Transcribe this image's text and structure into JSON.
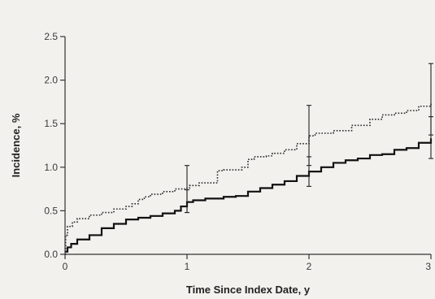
{
  "chart_data": {
    "type": "line",
    "title": "",
    "xlabel": "Time Since Index Date, y",
    "ylabel": "Incidence, %",
    "xlim": [
      0,
      3
    ],
    "ylim": [
      0,
      2.5
    ],
    "x_ticks": [
      0,
      1,
      2,
      3
    ],
    "x_tick_labels": [
      "0",
      "1",
      "2",
      "3"
    ],
    "y_ticks": [
      0,
      0.5,
      1.0,
      1.5,
      2.0,
      2.5
    ],
    "y_tick_labels": [
      "0.0",
      "0.5",
      "1.0",
      "1.5",
      "2.0",
      "2.5"
    ],
    "grid": false,
    "legend": "none",
    "series": [
      {
        "style": "dotted",
        "color": "#2a2a2a",
        "points": [
          [
            0,
            0
          ],
          [
            0.005,
            0.22
          ],
          [
            0.02,
            0.32
          ],
          [
            0.06,
            0.37
          ],
          [
            0.1,
            0.41
          ],
          [
            0.2,
            0.45
          ],
          [
            0.3,
            0.48
          ],
          [
            0.4,
            0.52
          ],
          [
            0.5,
            0.55
          ],
          [
            0.55,
            0.58
          ],
          [
            0.6,
            0.63
          ],
          [
            0.65,
            0.66
          ],
          [
            0.7,
            0.69
          ],
          [
            0.8,
            0.72
          ],
          [
            0.9,
            0.75
          ],
          [
            1.0,
            0.76
          ],
          [
            1.02,
            0.79
          ],
          [
            1.1,
            0.82
          ],
          [
            1.18,
            0.82
          ],
          [
            1.25,
            0.83
          ],
          [
            1.25,
            0.96
          ],
          [
            1.3,
            0.97
          ],
          [
            1.45,
            1.0
          ],
          [
            1.5,
            1.09
          ],
          [
            1.55,
            1.12
          ],
          [
            1.65,
            1.13
          ],
          [
            1.7,
            1.16
          ],
          [
            1.8,
            1.2
          ],
          [
            1.9,
            1.27
          ],
          [
            2.0,
            1.36
          ],
          [
            2.05,
            1.39
          ],
          [
            2.2,
            1.42
          ],
          [
            2.35,
            1.48
          ],
          [
            2.5,
            1.55
          ],
          [
            2.6,
            1.6
          ],
          [
            2.7,
            1.62
          ],
          [
            2.8,
            1.65
          ],
          [
            2.9,
            1.7
          ],
          [
            3.0,
            1.74
          ]
        ],
        "error_bars": [
          {
            "x": 1,
            "y": 0.76,
            "low": 0.48,
            "high": 1.02
          },
          {
            "x": 2,
            "y": 1.36,
            "low": 1.02,
            "high": 1.71
          },
          {
            "x": 3,
            "y": 1.74,
            "low": 1.37,
            "high": 2.19
          }
        ]
      },
      {
        "style": "solid",
        "color": "#111111",
        "points": [
          [
            0,
            0.03
          ],
          [
            0.02,
            0.08
          ],
          [
            0.05,
            0.12
          ],
          [
            0.1,
            0.17
          ],
          [
            0.2,
            0.22
          ],
          [
            0.3,
            0.3
          ],
          [
            0.4,
            0.35
          ],
          [
            0.5,
            0.4
          ],
          [
            0.6,
            0.42
          ],
          [
            0.7,
            0.44
          ],
          [
            0.8,
            0.47
          ],
          [
            0.9,
            0.5
          ],
          [
            0.95,
            0.55
          ],
          [
            1.0,
            0.6
          ],
          [
            1.05,
            0.62
          ],
          [
            1.15,
            0.64
          ],
          [
            1.3,
            0.66
          ],
          [
            1.4,
            0.67
          ],
          [
            1.5,
            0.72
          ],
          [
            1.6,
            0.76
          ],
          [
            1.7,
            0.8
          ],
          [
            1.8,
            0.84
          ],
          [
            1.9,
            0.9
          ],
          [
            2.0,
            0.95
          ],
          [
            2.1,
            1.0
          ],
          [
            2.2,
            1.05
          ],
          [
            2.3,
            1.08
          ],
          [
            2.4,
            1.1
          ],
          [
            2.5,
            1.14
          ],
          [
            2.6,
            1.15
          ],
          [
            2.7,
            1.2
          ],
          [
            2.8,
            1.22
          ],
          [
            2.9,
            1.28
          ],
          [
            3.0,
            1.33
          ]
        ],
        "error_bars": [
          {
            "x": 1,
            "y": 0.6,
            "low": 0.48,
            "high": 0.74
          },
          {
            "x": 2,
            "y": 0.95,
            "low": 0.78,
            "high": 1.12
          },
          {
            "x": 3,
            "y": 1.33,
            "low": 1.1,
            "high": 1.58
          }
        ]
      }
    ]
  }
}
